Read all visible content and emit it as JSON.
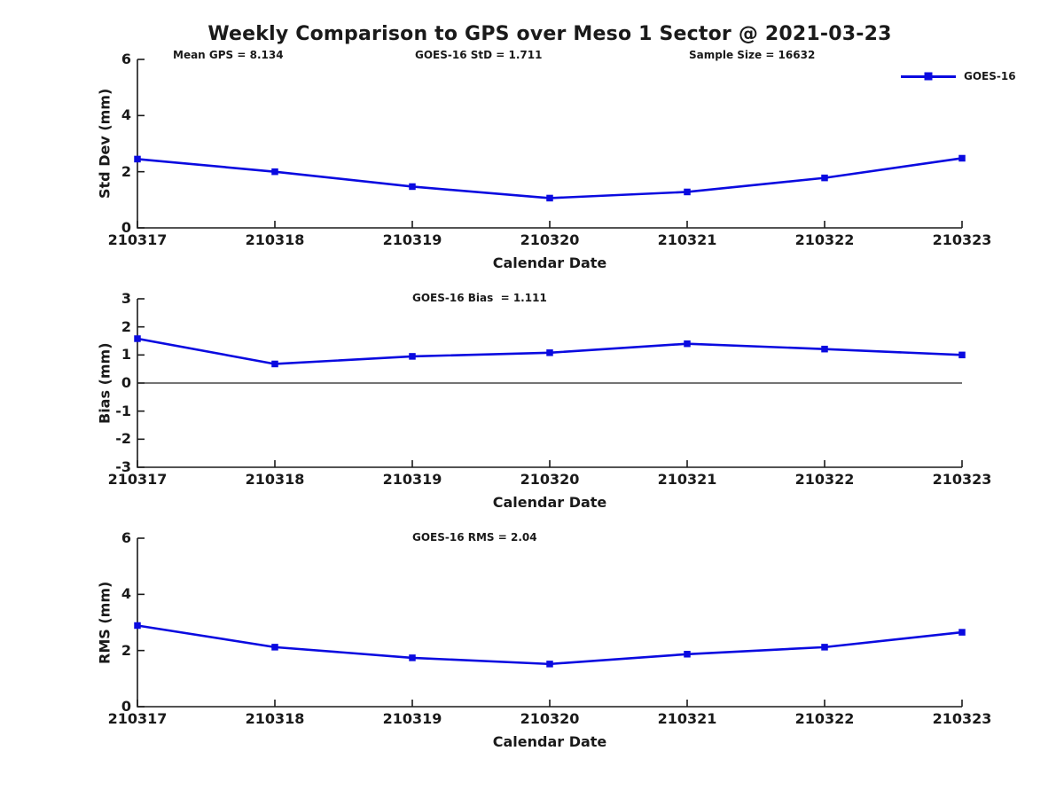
{
  "figure": {
    "title": "Weekly Comparison to GPS over Meso 1 Sector @ 2021-03-23"
  },
  "legend": {
    "label": "GOES-16"
  },
  "colors": {
    "series": "#0a0ae0",
    "axis": "#1a1a1a",
    "zero_line": "#222222",
    "background": "#ffffff"
  },
  "chart_data": [
    {
      "type": "line",
      "title": "",
      "ylabel": "Std Dev (mm)",
      "xlabel": "Calendar Date",
      "categories": [
        "210317",
        "210318",
        "210319",
        "210320",
        "210321",
        "210322",
        "210323"
      ],
      "series": [
        {
          "name": "GOES-16",
          "values": [
            2.45,
            2.0,
            1.47,
            1.06,
            1.28,
            1.78,
            2.48
          ]
        }
      ],
      "ylim": [
        0,
        6
      ],
      "yticks": [
        0,
        2,
        4,
        6
      ],
      "grid": false,
      "zero_line": false,
      "legend_position": "top-right",
      "marker": "square",
      "annotations": [
        {
          "text": "Mean GPS = 8.134"
        },
        {
          "text": "GOES-16 StD = 1.711"
        },
        {
          "text": "Sample Size = 16632"
        }
      ]
    },
    {
      "type": "line",
      "title": "",
      "ylabel": "Bias (mm)",
      "xlabel": "Calendar Date",
      "categories": [
        "210317",
        "210318",
        "210319",
        "210320",
        "210321",
        "210322",
        "210323"
      ],
      "series": [
        {
          "name": "GOES-16",
          "values": [
            1.58,
            0.68,
            0.95,
            1.08,
            1.4,
            1.21,
            1.0
          ]
        }
      ],
      "ylim": [
        -3,
        3
      ],
      "yticks": [
        -3,
        -2,
        -1,
        0,
        1,
        2,
        3
      ],
      "grid": false,
      "zero_line": true,
      "legend_position": "none",
      "marker": "square",
      "annotations": [
        {
          "text": "GOES-16 Bias  = 1.111"
        }
      ]
    },
    {
      "type": "line",
      "title": "",
      "ylabel": "RMS (mm)",
      "xlabel": "Calendar Date",
      "categories": [
        "210317",
        "210318",
        "210319",
        "210320",
        "210321",
        "210322",
        "210323"
      ],
      "series": [
        {
          "name": "GOES-16",
          "values": [
            2.89,
            2.12,
            1.74,
            1.52,
            1.87,
            2.12,
            2.65
          ]
        }
      ],
      "ylim": [
        0,
        6
      ],
      "yticks": [
        0,
        2,
        4,
        6
      ],
      "grid": false,
      "zero_line": false,
      "legend_position": "none",
      "marker": "square",
      "annotations": [
        {
          "text": "GOES-16 RMS = 2.04"
        }
      ]
    }
  ]
}
